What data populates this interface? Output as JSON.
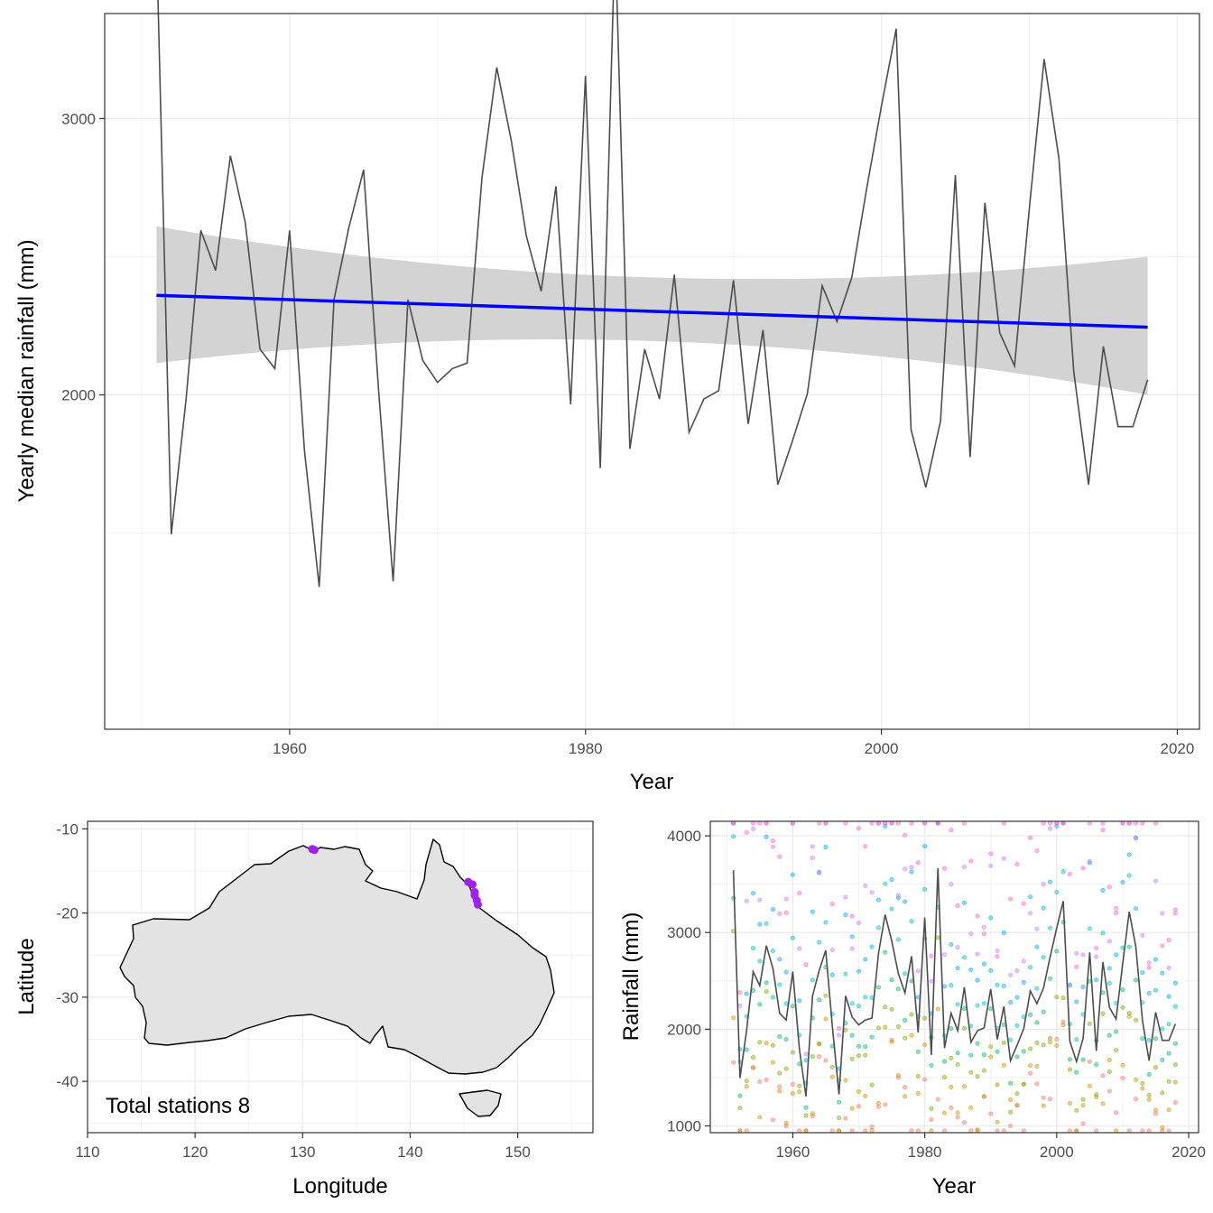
{
  "chart_data": [
    {
      "id": "top",
      "type": "line",
      "xlabel": "Year",
      "ylabel": "Yearly median rainfall (mm)",
      "xlim": [
        1947.5,
        2021.5
      ],
      "ylim": [
        790,
        3380
      ],
      "xticks": [
        1960,
        1980,
        2000,
        2020
      ],
      "yticks": [
        2000,
        3000
      ],
      "grid": true,
      "x": [
        1951,
        1952,
        1953,
        1954,
        1955,
        1956,
        1957,
        1958,
        1959,
        1960,
        1961,
        1962,
        1963,
        1964,
        1965,
        1966,
        1967,
        1968,
        1969,
        1970,
        1971,
        1972,
        1973,
        1974,
        1975,
        1976,
        1977,
        1978,
        1979,
        1980,
        1981,
        1982,
        1983,
        1984,
        1985,
        1986,
        1987,
        1988,
        1989,
        1990,
        1991,
        1992,
        1993,
        1994,
        1995,
        1996,
        1997,
        1998,
        1999,
        2000,
        2001,
        2002,
        2003,
        2004,
        2005,
        2006,
        2007,
        2008,
        2009,
        2010,
        2011,
        2012,
        2013,
        2014,
        2015,
        2016,
        2017,
        2018
      ],
      "series": [
        {
          "values": [
            3645,
            1495,
            1985,
            2595,
            2450,
            2865,
            2625,
            2165,
            2095,
            2595,
            1800,
            1305,
            2345,
            2605,
            2815,
            2025,
            1325,
            2345,
            2125,
            2045,
            2095,
            2115,
            2785,
            3185,
            2915,
            2575,
            2375,
            2755,
            1965,
            3155,
            1735,
            3665,
            1805,
            2165,
            1985,
            2435,
            1865,
            1985,
            2015,
            2415,
            1895,
            2235,
            1675,
            1835,
            2005,
            2395,
            2265,
            2425,
            2745,
            3045,
            3325,
            1875,
            1665,
            1905,
            2795,
            1775,
            2695,
            2225,
            2105,
            2675,
            3215,
            2855,
            2085,
            1675,
            2175,
            1885,
            1885,
            2055
          ]
        }
      ],
      "trend": {
        "color": "#0000ff",
        "y_start": 2360,
        "y_end": 2245,
        "ci_lower_start": 2115,
        "ci_upper_start": 2610,
        "ci_lower_mid": 2195,
        "ci_upper_mid": 2425,
        "ci_lower_end": 2000,
        "ci_upper_end": 2500
      },
      "line_color": "#4d4d4d",
      "ribbon_color": "#d3d3d3"
    },
    {
      "id": "map",
      "type": "scatter",
      "xlabel": "Longitude",
      "ylabel": "Latitude",
      "xlim": [
        110,
        157
      ],
      "ylim": [
        -46.1,
        -9.1
      ],
      "xticks": [
        110,
        120,
        130,
        140,
        150
      ],
      "yticks": [
        -10,
        -20,
        -30,
        -40
      ],
      "grid": true,
      "land_color": "#e3e3e3",
      "station_color": "#a020f0",
      "stations": [
        [
          130.9,
          -12.4
        ],
        [
          131.1,
          -12.5
        ],
        [
          145.4,
          -16.3
        ],
        [
          145.8,
          -16.6
        ],
        [
          146.0,
          -17.5
        ],
        [
          146.0,
          -17.9
        ],
        [
          146.2,
          -18.5
        ],
        [
          146.3,
          -19.0
        ]
      ],
      "annotation": "Total stations 8"
    },
    {
      "id": "stations",
      "type": "scatter",
      "xlabel": "Year",
      "ylabel": "Rainfall (mm)",
      "xlim": [
        1947.5,
        2021.5
      ],
      "ylim": [
        930,
        4150
      ],
      "xticks": [
        1960,
        1980,
        2000,
        2020
      ],
      "yticks": [
        1000,
        2000,
        3000,
        4000
      ],
      "grid": true,
      "station_colors": [
        "#f8766d",
        "#cd9600",
        "#7cae00",
        "#00be67",
        "#00bfc4",
        "#00a9ff",
        "#c77cff",
        "#ff61cc"
      ]
    }
  ]
}
